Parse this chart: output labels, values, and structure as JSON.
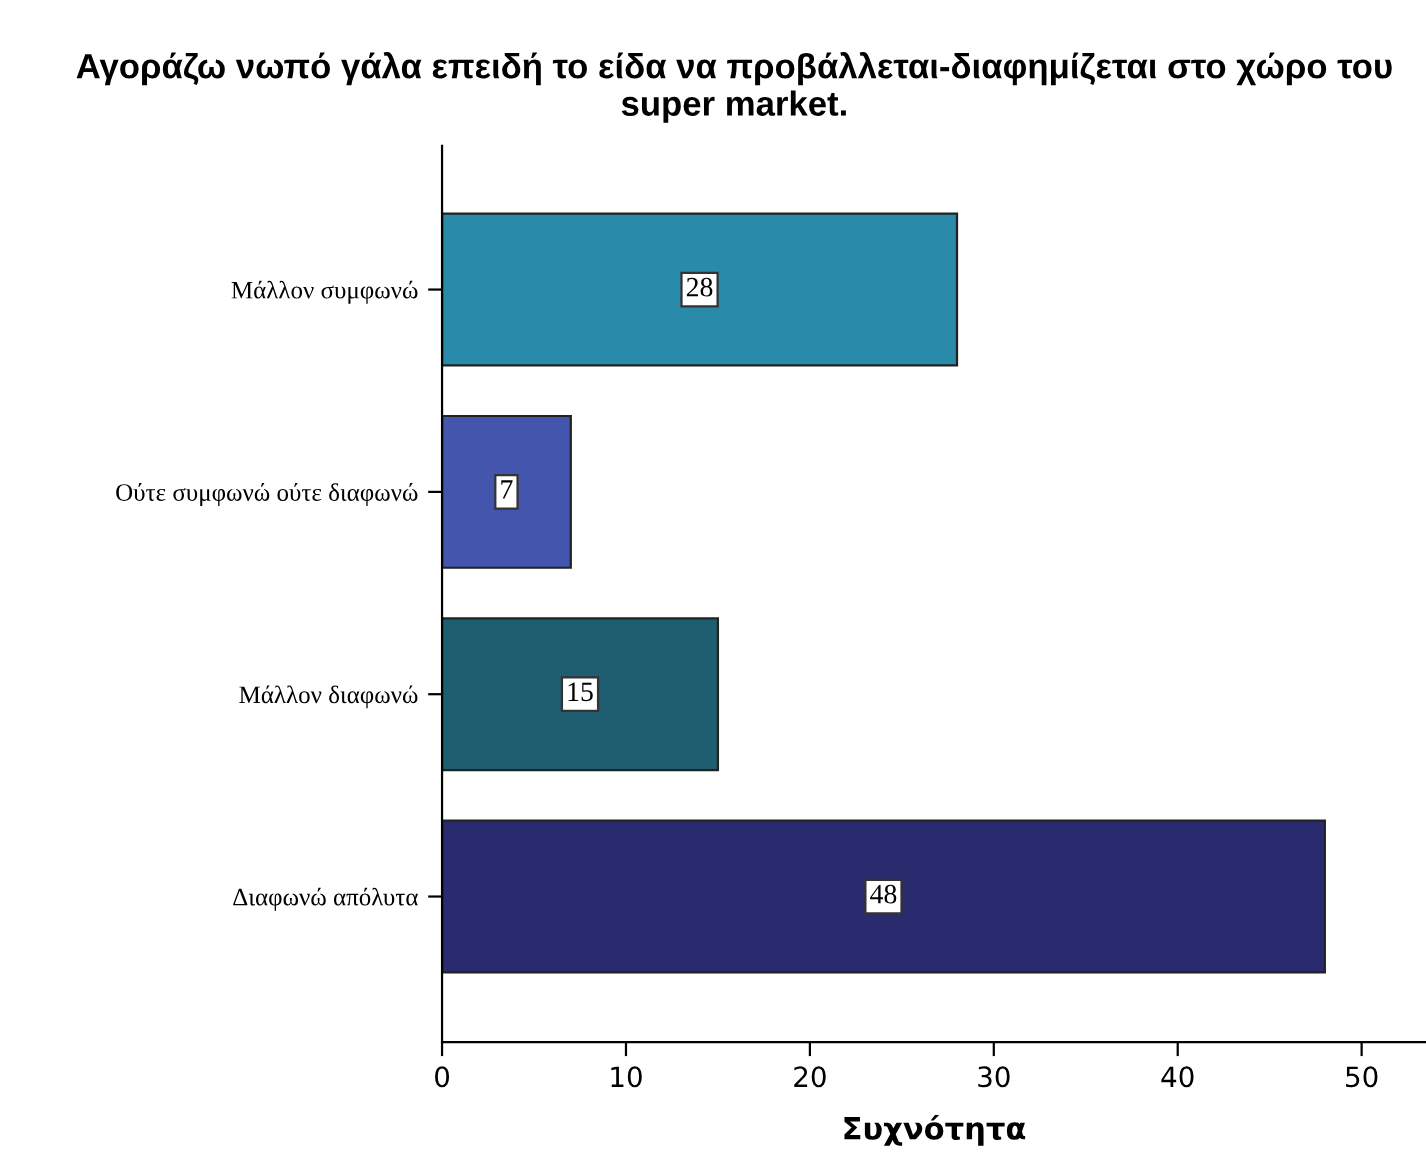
{
  "chart_data": {
    "type": "bar",
    "orientation": "horizontal",
    "title": "Αγοράζω νωπό γάλα επειδή το είδα να προβάλλεται-διαφημίζεται στο χώρο του super market.",
    "xlabel": "Συχνότητα",
    "categories": [
      "Μάλλον συμφωνώ",
      "Ούτε συμφωνώ ούτε διαφωνώ",
      "Μάλλον διαφωνώ",
      "Διαφωνώ απόλυτα"
    ],
    "values": [
      28,
      7,
      15,
      48
    ],
    "colors": [
      "#2a8aaa",
      "#4355ad",
      "#1f5e70",
      "#2a2a6e"
    ],
    "xlim": [
      0,
      53.5
    ],
    "xticks": [
      0,
      10,
      20,
      30,
      40,
      50
    ],
    "data_labels": true,
    "grid": false,
    "legend": false
  }
}
